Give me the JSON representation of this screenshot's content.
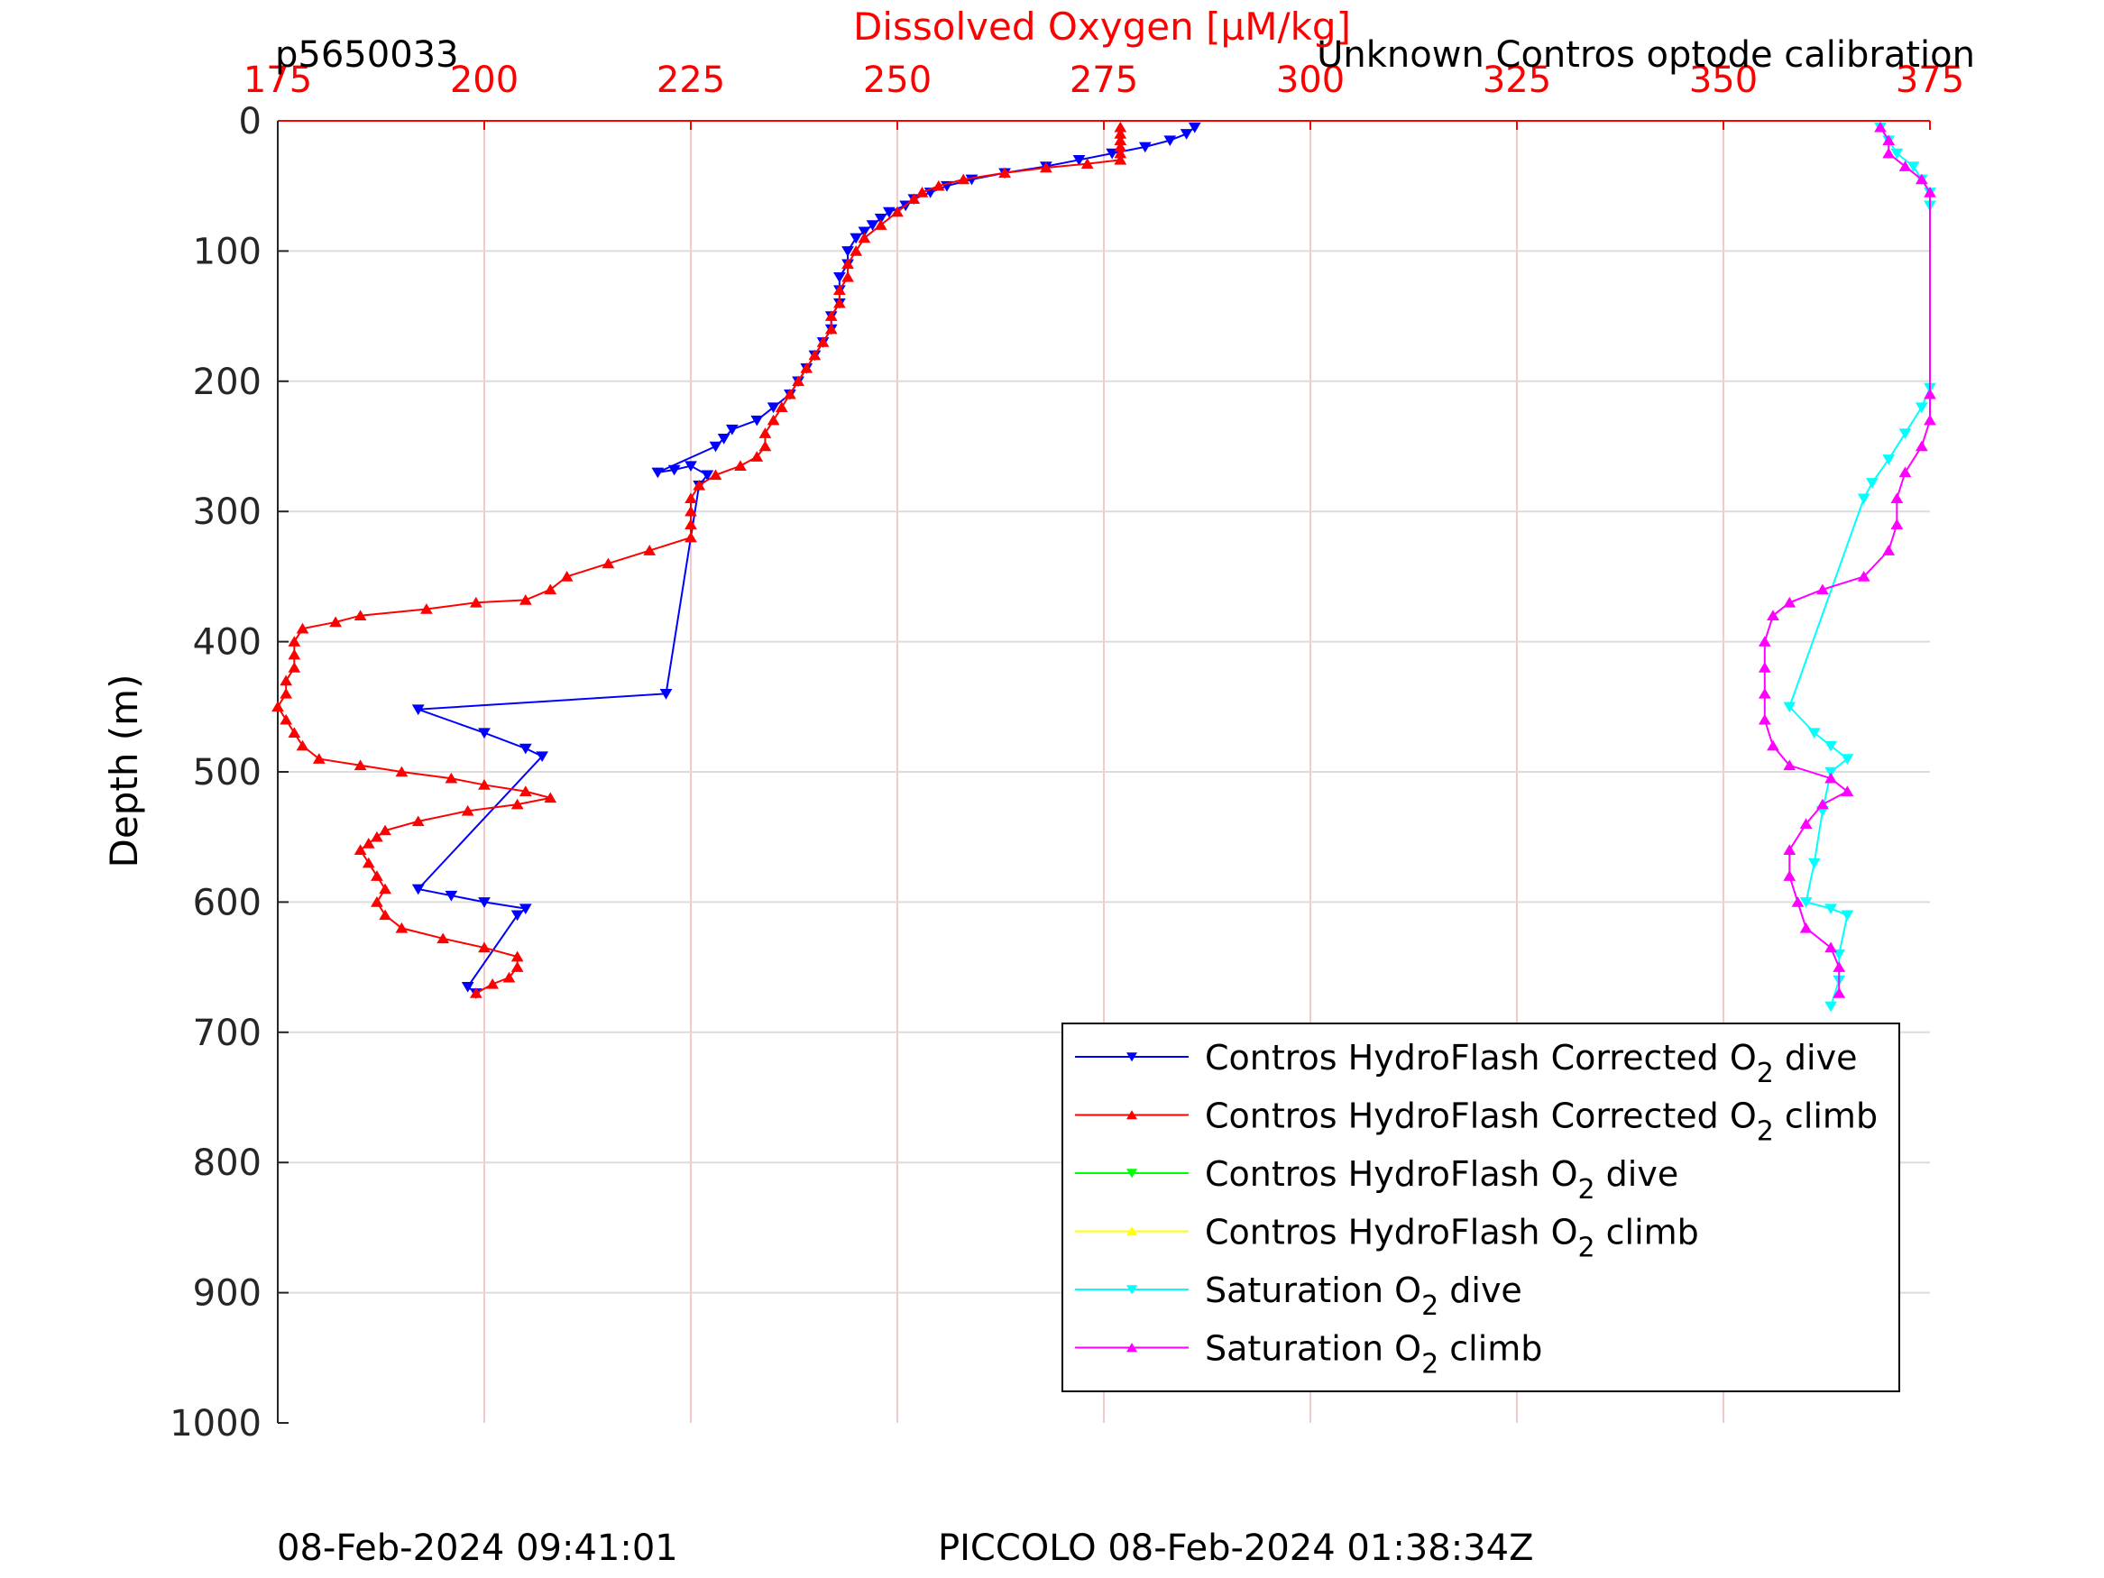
{
  "header": {
    "left": "p5650033",
    "right": "Unknown Contros optode calibration"
  },
  "footer": {
    "left": "08-Feb-2024 09:41:01",
    "center": "PICCOLO 08-Feb-2024 01:38:34Z"
  },
  "chart_data": {
    "type": "scatter",
    "title": "",
    "xlabel": "Dissolved Oxygen [μM/kg]",
    "ylabel": "Depth (m)",
    "xlim": [
      175,
      375
    ],
    "ylim": [
      0,
      1000
    ],
    "y_reversed": true,
    "x_axis_position": "top",
    "x_ticks": [
      175,
      200,
      225,
      250,
      275,
      300,
      325,
      350,
      375
    ],
    "y_ticks": [
      0,
      100,
      200,
      300,
      400,
      500,
      600,
      700,
      800,
      900,
      1000
    ],
    "grid": true,
    "x_axis_color": "#ff0000",
    "legend_position": "bottom-right",
    "series": [
      {
        "name": "Contros HydroFlash Corrected O2 dive",
        "color": "#0000ff",
        "marker": "triangle-down",
        "line": true,
        "points": [
          [
            286,
            5
          ],
          [
            285,
            10
          ],
          [
            283,
            15
          ],
          [
            280,
            20
          ],
          [
            276,
            25
          ],
          [
            272,
            30
          ],
          [
            268,
            35
          ],
          [
            263,
            40
          ],
          [
            259,
            45
          ],
          [
            256,
            50
          ],
          [
            254,
            55
          ],
          [
            252,
            60
          ],
          [
            251,
            65
          ],
          [
            249,
            70
          ],
          [
            248,
            75
          ],
          [
            247,
            80
          ],
          [
            246,
            85
          ],
          [
            245,
            90
          ],
          [
            244,
            100
          ],
          [
            244,
            110
          ],
          [
            243,
            120
          ],
          [
            243,
            130
          ],
          [
            243,
            140
          ],
          [
            242,
            150
          ],
          [
            242,
            160
          ],
          [
            241,
            170
          ],
          [
            240,
            180
          ],
          [
            239,
            190
          ],
          [
            238,
            200
          ],
          [
            237,
            210
          ],
          [
            235,
            220
          ],
          [
            233,
            230
          ],
          [
            230,
            237
          ],
          [
            229,
            244
          ],
          [
            228,
            250
          ],
          [
            221,
            270
          ],
          [
            223,
            268
          ],
          [
            225,
            265
          ],
          [
            227,
            272
          ],
          [
            226,
            280
          ],
          [
            222,
            440
          ],
          [
            192,
            452
          ],
          [
            200,
            470
          ],
          [
            205,
            482
          ],
          [
            207,
            488
          ],
          [
            192,
            590
          ],
          [
            196,
            595
          ],
          [
            200,
            600
          ],
          [
            205,
            605
          ],
          [
            204,
            610
          ],
          [
            198,
            665
          ],
          [
            199,
            670
          ]
        ]
      },
      {
        "name": "Contros HydroFlash Corrected O2 climb",
        "color": "#ff0000",
        "marker": "triangle-up",
        "line": true,
        "points": [
          [
            277,
            5
          ],
          [
            277,
            10
          ],
          [
            277,
            15
          ],
          [
            277,
            20
          ],
          [
            277,
            25
          ],
          [
            277,
            30
          ],
          [
            273,
            33
          ],
          [
            268,
            36
          ],
          [
            263,
            40
          ],
          [
            258,
            45
          ],
          [
            255,
            50
          ],
          [
            253,
            55
          ],
          [
            252,
            60
          ],
          [
            250,
            70
          ],
          [
            248,
            80
          ],
          [
            246,
            90
          ],
          [
            245,
            100
          ],
          [
            244,
            110
          ],
          [
            244,
            120
          ],
          [
            243,
            130
          ],
          [
            243,
            140
          ],
          [
            242,
            150
          ],
          [
            242,
            160
          ],
          [
            241,
            170
          ],
          [
            240,
            180
          ],
          [
            239,
            190
          ],
          [
            238,
            200
          ],
          [
            237,
            210
          ],
          [
            236,
            220
          ],
          [
            235,
            230
          ],
          [
            234,
            240
          ],
          [
            234,
            250
          ],
          [
            233,
            258
          ],
          [
            231,
            265
          ],
          [
            228,
            272
          ],
          [
            226,
            280
          ],
          [
            225,
            290
          ],
          [
            225,
            300
          ],
          [
            225,
            310
          ],
          [
            225,
            320
          ],
          [
            220,
            330
          ],
          [
            215,
            340
          ],
          [
            210,
            350
          ],
          [
            208,
            360
          ],
          [
            205,
            368
          ],
          [
            199,
            370
          ],
          [
            193,
            375
          ],
          [
            185,
            380
          ],
          [
            182,
            385
          ],
          [
            178,
            390
          ],
          [
            177,
            400
          ],
          [
            177,
            410
          ],
          [
            177,
            420
          ],
          [
            176,
            430
          ],
          [
            176,
            440
          ],
          [
            175,
            450
          ],
          [
            176,
            460
          ],
          [
            177,
            470
          ],
          [
            178,
            480
          ],
          [
            180,
            490
          ],
          [
            185,
            495
          ],
          [
            190,
            500
          ],
          [
            196,
            505
          ],
          [
            200,
            510
          ],
          [
            205,
            515
          ],
          [
            208,
            520
          ],
          [
            204,
            525
          ],
          [
            198,
            530
          ],
          [
            192,
            538
          ],
          [
            188,
            545
          ],
          [
            187,
            550
          ],
          [
            186,
            555
          ],
          [
            185,
            560
          ],
          [
            186,
            570
          ],
          [
            187,
            580
          ],
          [
            188,
            590
          ],
          [
            187,
            600
          ],
          [
            188,
            610
          ],
          [
            190,
            620
          ],
          [
            195,
            628
          ],
          [
            200,
            635
          ],
          [
            204,
            642
          ],
          [
            204,
            650
          ],
          [
            203,
            658
          ],
          [
            201,
            663
          ],
          [
            199,
            670
          ]
        ]
      },
      {
        "name": "Contros HydroFlash O2 dive",
        "color": "#00ff00",
        "marker": "triangle-down",
        "line": true,
        "points": []
      },
      {
        "name": "Contros HydroFlash O2 climb",
        "color": "#ffff00",
        "marker": "triangle-up",
        "line": true,
        "points": []
      },
      {
        "name": "Saturation O2 dive",
        "color": "#00ffff",
        "marker": "triangle-down",
        "line": true,
        "points": [
          [
            369,
            5
          ],
          [
            370,
            15
          ],
          [
            371,
            25
          ],
          [
            373,
            35
          ],
          [
            374,
            45
          ],
          [
            375,
            55
          ],
          [
            375,
            65
          ],
          [
            375,
            205
          ],
          [
            374,
            220
          ],
          [
            372,
            240
          ],
          [
            370,
            260
          ],
          [
            368,
            278
          ],
          [
            367,
            290
          ],
          [
            358,
            450
          ],
          [
            361,
            470
          ],
          [
            363,
            480
          ],
          [
            365,
            490
          ],
          [
            363,
            500
          ],
          [
            362,
            530
          ],
          [
            361,
            570
          ],
          [
            360,
            600
          ],
          [
            363,
            605
          ],
          [
            365,
            610
          ],
          [
            364,
            640
          ],
          [
            364,
            660
          ],
          [
            363,
            680
          ]
        ]
      },
      {
        "name": "Saturation O2 climb",
        "color": "#ff00ff",
        "marker": "triangle-up",
        "line": true,
        "points": [
          [
            369,
            5
          ],
          [
            370,
            15
          ],
          [
            370,
            25
          ],
          [
            372,
            35
          ],
          [
            374,
            45
          ],
          [
            375,
            55
          ],
          [
            375,
            210
          ],
          [
            375,
            230
          ],
          [
            374,
            250
          ],
          [
            372,
            270
          ],
          [
            371,
            290
          ],
          [
            371,
            310
          ],
          [
            370,
            330
          ],
          [
            367,
            350
          ],
          [
            362,
            360
          ],
          [
            358,
            370
          ],
          [
            356,
            380
          ],
          [
            355,
            400
          ],
          [
            355,
            420
          ],
          [
            355,
            440
          ],
          [
            355,
            460
          ],
          [
            356,
            480
          ],
          [
            358,
            495
          ],
          [
            363,
            505
          ],
          [
            365,
            515
          ],
          [
            362,
            525
          ],
          [
            360,
            540
          ],
          [
            358,
            560
          ],
          [
            358,
            580
          ],
          [
            359,
            600
          ],
          [
            360,
            620
          ],
          [
            363,
            635
          ],
          [
            364,
            650
          ],
          [
            364,
            670
          ]
        ]
      }
    ]
  }
}
